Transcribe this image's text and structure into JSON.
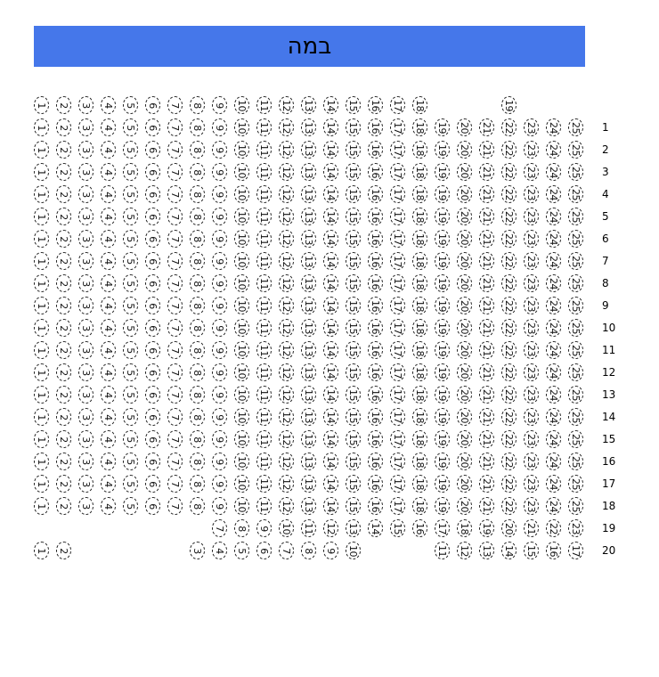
{
  "stage": {
    "label": "במה",
    "color": "#4577ea"
  },
  "rows": [
    {
      "label": "",
      "seats": [
        1,
        2,
        3,
        4,
        5,
        6,
        7,
        8,
        9,
        10,
        11,
        12,
        13,
        14,
        15,
        16,
        17,
        18,
        null,
        null,
        null,
        19
      ]
    },
    {
      "label": "1",
      "seats": [
        1,
        2,
        3,
        4,
        5,
        6,
        7,
        8,
        9,
        10,
        11,
        12,
        13,
        14,
        15,
        16,
        17,
        18,
        19,
        20,
        21,
        22,
        23,
        24,
        25
      ]
    },
    {
      "label": "2",
      "seats": [
        1,
        2,
        3,
        4,
        5,
        6,
        7,
        8,
        9,
        10,
        11,
        12,
        13,
        14,
        15,
        16,
        17,
        18,
        19,
        20,
        21,
        22,
        23,
        24,
        25
      ]
    },
    {
      "label": "3",
      "seats": [
        1,
        2,
        3,
        4,
        5,
        6,
        7,
        8,
        9,
        10,
        11,
        12,
        13,
        14,
        15,
        16,
        17,
        18,
        19,
        20,
        21,
        22,
        23,
        24,
        25
      ]
    },
    {
      "label": "4",
      "seats": [
        1,
        2,
        3,
        4,
        5,
        6,
        7,
        8,
        9,
        10,
        11,
        12,
        13,
        14,
        15,
        16,
        17,
        18,
        19,
        20,
        21,
        22,
        23,
        24,
        25
      ]
    },
    {
      "label": "5",
      "seats": [
        1,
        2,
        3,
        4,
        5,
        6,
        7,
        8,
        9,
        10,
        11,
        12,
        13,
        14,
        15,
        16,
        17,
        18,
        19,
        20,
        21,
        22,
        23,
        24,
        25
      ]
    },
    {
      "label": "6",
      "seats": [
        1,
        2,
        3,
        4,
        5,
        6,
        7,
        8,
        9,
        10,
        11,
        12,
        13,
        14,
        15,
        16,
        17,
        18,
        19,
        20,
        21,
        22,
        23,
        24,
        25
      ]
    },
    {
      "label": "7",
      "seats": [
        1,
        2,
        3,
        4,
        5,
        6,
        7,
        8,
        9,
        10,
        11,
        12,
        13,
        14,
        15,
        16,
        17,
        18,
        19,
        20,
        21,
        22,
        23,
        24,
        25
      ]
    },
    {
      "label": "8",
      "seats": [
        1,
        2,
        3,
        4,
        5,
        6,
        7,
        8,
        9,
        10,
        11,
        12,
        13,
        14,
        15,
        16,
        17,
        18,
        19,
        20,
        21,
        22,
        23,
        24,
        25
      ]
    },
    {
      "label": "9",
      "seats": [
        1,
        2,
        3,
        4,
        5,
        6,
        7,
        8,
        9,
        10,
        11,
        12,
        13,
        14,
        15,
        16,
        17,
        18,
        19,
        20,
        21,
        22,
        23,
        24,
        25
      ]
    },
    {
      "label": "10",
      "seats": [
        1,
        2,
        3,
        4,
        5,
        6,
        7,
        8,
        9,
        10,
        11,
        12,
        13,
        14,
        15,
        16,
        17,
        18,
        19,
        20,
        21,
        22,
        23,
        24,
        25
      ]
    },
    {
      "label": "11",
      "seats": [
        1,
        2,
        3,
        4,
        5,
        6,
        7,
        8,
        9,
        10,
        11,
        12,
        13,
        14,
        15,
        16,
        17,
        18,
        19,
        20,
        21,
        22,
        23,
        24,
        25
      ]
    },
    {
      "label": "12",
      "seats": [
        1,
        2,
        3,
        4,
        5,
        6,
        7,
        8,
        9,
        10,
        11,
        12,
        13,
        14,
        15,
        16,
        17,
        18,
        19,
        20,
        21,
        22,
        23,
        24,
        25
      ]
    },
    {
      "label": "13",
      "seats": [
        1,
        2,
        3,
        4,
        5,
        6,
        7,
        8,
        9,
        10,
        11,
        12,
        13,
        14,
        15,
        16,
        17,
        18,
        19,
        20,
        21,
        22,
        23,
        24,
        25
      ]
    },
    {
      "label": "14",
      "seats": [
        1,
        2,
        3,
        4,
        5,
        6,
        7,
        8,
        9,
        10,
        11,
        12,
        13,
        14,
        15,
        16,
        17,
        18,
        19,
        20,
        21,
        22,
        23,
        24,
        25
      ]
    },
    {
      "label": "15",
      "seats": [
        1,
        2,
        3,
        4,
        5,
        6,
        7,
        8,
        9,
        10,
        11,
        12,
        13,
        14,
        15,
        16,
        17,
        18,
        19,
        20,
        21,
        22,
        23,
        24,
        25
      ]
    },
    {
      "label": "16",
      "seats": [
        1,
        2,
        3,
        4,
        5,
        6,
        7,
        8,
        9,
        10,
        11,
        12,
        13,
        14,
        15,
        16,
        17,
        18,
        19,
        20,
        21,
        22,
        23,
        24,
        25
      ]
    },
    {
      "label": "17",
      "seats": [
        1,
        2,
        3,
        4,
        5,
        6,
        7,
        8,
        9,
        10,
        11,
        12,
        13,
        14,
        15,
        16,
        17,
        18,
        19,
        20,
        21,
        22,
        23,
        24,
        25
      ]
    },
    {
      "label": "18",
      "seats": [
        1,
        2,
        3,
        4,
        5,
        6,
        7,
        8,
        9,
        10,
        11,
        12,
        13,
        14,
        15,
        16,
        17,
        18,
        19,
        20,
        21,
        22,
        23,
        24,
        25
      ]
    },
    {
      "label": "19",
      "seats": [
        null,
        null,
        null,
        null,
        null,
        null,
        null,
        null,
        7,
        8,
        9,
        10,
        11,
        12,
        13,
        14,
        15,
        16,
        17,
        18,
        19,
        20,
        21,
        22,
        23
      ]
    },
    {
      "label": "20",
      "seats": [
        1,
        2,
        null,
        null,
        null,
        null,
        null,
        3,
        4,
        5,
        6,
        7,
        8,
        9,
        10,
        null,
        null,
        null,
        11,
        12,
        13,
        14,
        15,
        16,
        17
      ]
    }
  ]
}
